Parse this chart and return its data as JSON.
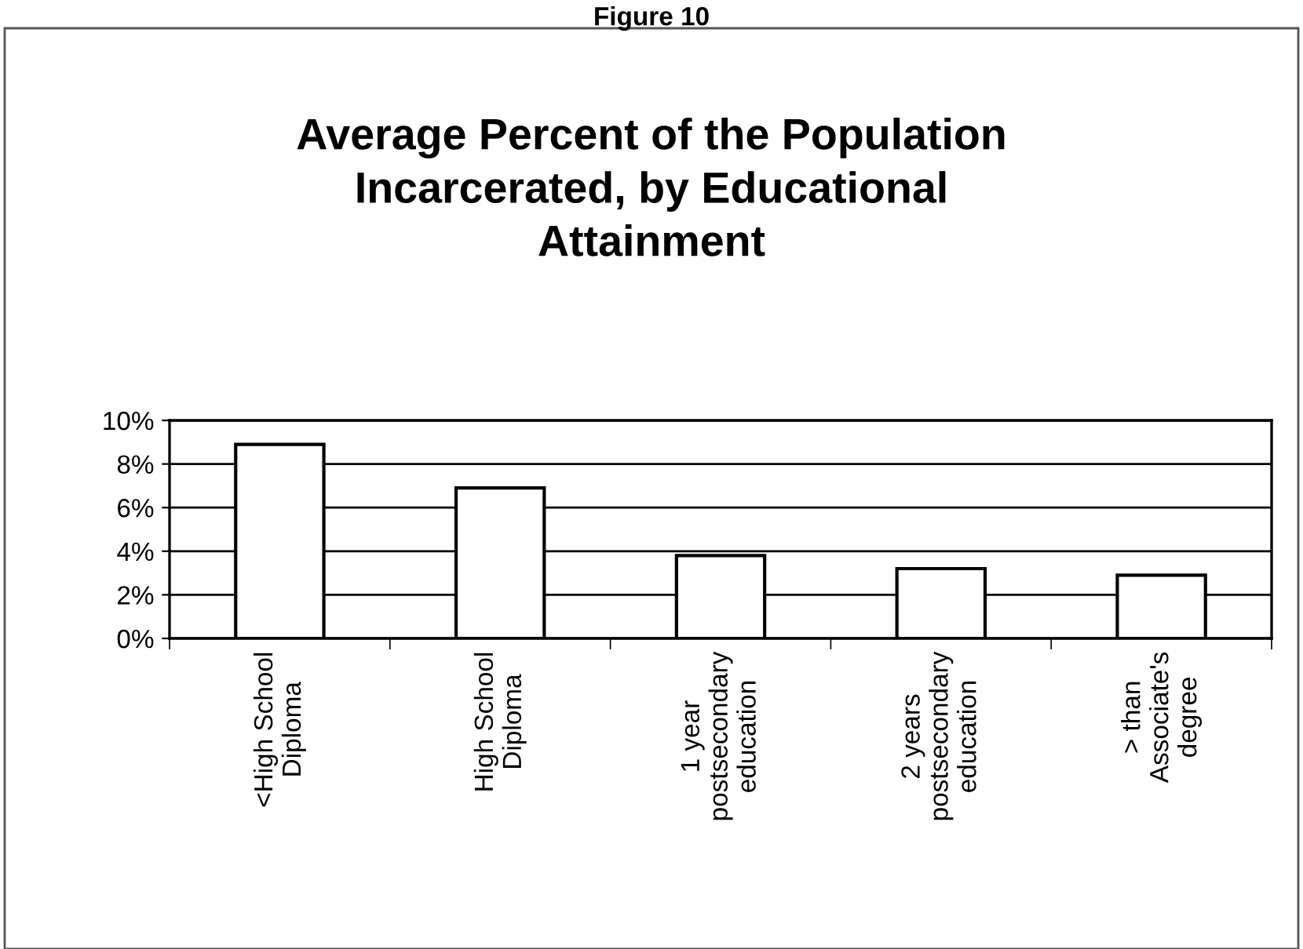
{
  "chart_data": {
    "type": "bar",
    "title": "Average Percent of the Population\nIncarcerated, by Educational\nAttainment",
    "annotations": [
      "Figure 10"
    ],
    "categories": [
      "<High School\nDiploma",
      "High School\nDiploma",
      "1 year\npostsecondary\neducation",
      "2 years\npostsecondary\neducation",
      "> than\nAssociate's\ndegree"
    ],
    "values": [
      8.9,
      6.9,
      3.8,
      3.2,
      2.9
    ],
    "color": "#ffffff",
    "ylim": [
      0,
      10
    ],
    "yticks": [
      {
        "value": 0,
        "label": "0%"
      },
      {
        "value": 2,
        "label": "2%"
      },
      {
        "value": 4,
        "label": "4%"
      },
      {
        "value": 6,
        "label": "6%"
      },
      {
        "value": 8,
        "label": "8%"
      },
      {
        "value": 10,
        "label": "10%"
      }
    ],
    "grid": "y",
    "legend": false
  }
}
